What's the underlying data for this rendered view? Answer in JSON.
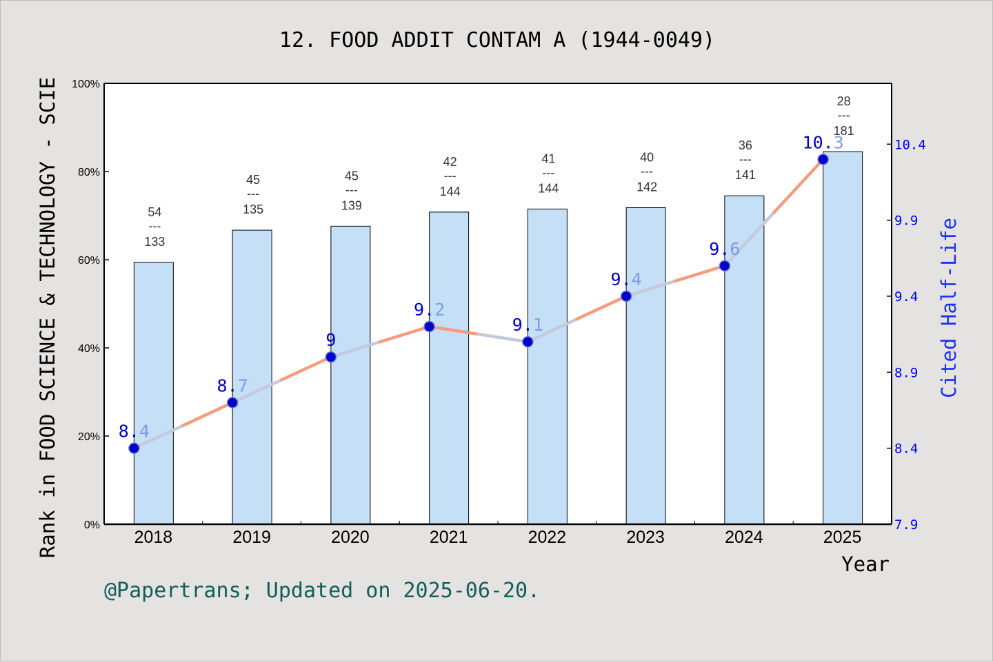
{
  "title": "12. FOOD ADDIT CONTAM A (1944-0049)",
  "footer": "@Papertrans; Updated on 2025-06-20.",
  "chart_data": {
    "type": "bar",
    "categories": [
      "2018",
      "2019",
      "2020",
      "2021",
      "2022",
      "2023",
      "2024",
      "2025"
    ],
    "xlabel": "Year",
    "ylabel": "Rank in FOOD SCIENCE & TECHNOLOGY - SCIE",
    "y2label": "Cited Half-Life",
    "ylim": [
      0,
      100
    ],
    "y_ticks": [
      "0%",
      "20%",
      "40%",
      "60%",
      "80%",
      "100%"
    ],
    "y2lim": [
      7.9,
      10.8
    ],
    "y2_ticks": [
      "7.9",
      "8.4",
      "8.9",
      "9.4",
      "9.9",
      "10.4"
    ],
    "rank_percentile": [
      59.4,
      66.7,
      67.6,
      70.8,
      71.5,
      71.8,
      74.5,
      84.5
    ],
    "rank": [
      "54",
      "45",
      "45",
      "42",
      "41",
      "40",
      "36",
      "28"
    ],
    "rank_separator": "---",
    "rank_total": [
      "133",
      "135",
      "139",
      "144",
      "144",
      "142",
      "141",
      "181"
    ],
    "half_life": [
      8.4,
      8.7,
      9.0,
      9.2,
      9.1,
      9.4,
      9.6,
      10.3
    ],
    "half_life_labels": [
      "8.4",
      "8.7",
      "9",
      "9.2",
      "9.1",
      "9.4",
      "9.6",
      "10.3"
    ],
    "colors": {
      "bar_fill": "#c5dff7",
      "line_up": "#f59c7e",
      "line_down": "#c5c9dc",
      "point": "#0000cc",
      "right_axis": "#1a33ee"
    },
    "grid": false
  }
}
